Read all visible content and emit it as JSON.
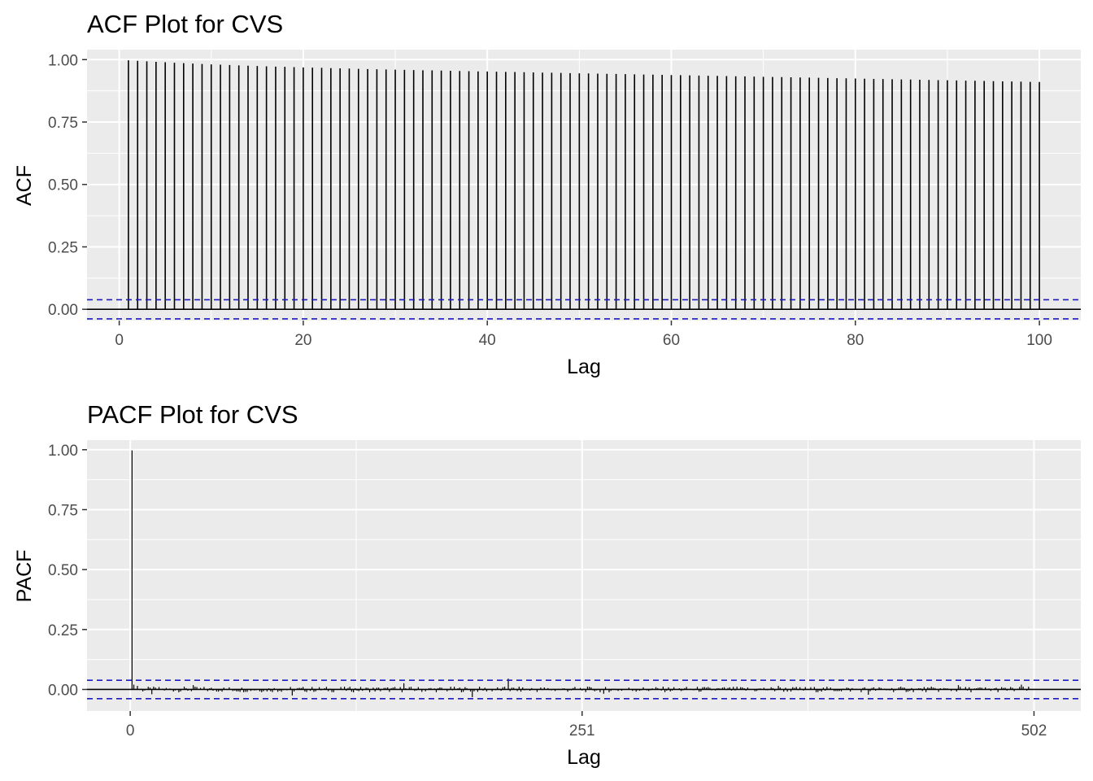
{
  "chart_data": [
    {
      "type": "bar",
      "title": "ACF Plot for CVS",
      "xlabel": "Lag",
      "ylabel": "ACF",
      "xlim": [
        -3.5,
        104.5
      ],
      "ylim": [
        -0.045,
        1.04
      ],
      "x_ticks": [
        0,
        20,
        40,
        60,
        80,
        100
      ],
      "y_ticks": [
        0.0,
        0.25,
        0.5,
        0.75,
        1.0
      ],
      "y_tick_labels": [
        "0.00",
        "0.25",
        "0.50",
        "0.75",
        "1.00"
      ],
      "confidence_bound": 0.0383,
      "lag_start": 1,
      "values": [
        0.9974,
        0.9951,
        0.9931,
        0.9912,
        0.9893,
        0.9875,
        0.9858,
        0.9842,
        0.9826,
        0.9811,
        0.9796,
        0.9783,
        0.977,
        0.9757,
        0.9745,
        0.9733,
        0.9721,
        0.971,
        0.9699,
        0.9689,
        0.9679,
        0.9669,
        0.9659,
        0.965,
        0.9641,
        0.9632,
        0.9624,
        0.9615,
        0.9607,
        0.9599,
        0.9591,
        0.9583,
        0.9575,
        0.9568,
        0.956,
        0.9553,
        0.9545,
        0.9538,
        0.953,
        0.9523,
        0.9516,
        0.9509,
        0.9502,
        0.9495,
        0.9488,
        0.9481,
        0.9474,
        0.9467,
        0.946,
        0.9453,
        0.9446,
        0.9439,
        0.9432,
        0.9425,
        0.9418,
        0.9411,
        0.9404,
        0.9397,
        0.939,
        0.9383,
        0.9376,
        0.9369,
        0.9362,
        0.9355,
        0.9348,
        0.9341,
        0.9334,
        0.9327,
        0.932,
        0.9313,
        0.9306,
        0.9299,
        0.9292,
        0.9285,
        0.9278,
        0.9271,
        0.9264,
        0.9257,
        0.925,
        0.9243,
        0.9236,
        0.9229,
        0.9222,
        0.9215,
        0.9208,
        0.9201,
        0.9194,
        0.9187,
        0.918,
        0.9173,
        0.9166,
        0.9159,
        0.9152,
        0.9145,
        0.9138,
        0.9131,
        0.9124,
        0.9117,
        0.911,
        0.9103
      ]
    },
    {
      "type": "bar",
      "title": "PACF Plot for CVS",
      "xlabel": "Lag",
      "ylabel": "PACF",
      "xlim": [
        -24,
        528
      ],
      "ylim": [
        -0.09,
        1.04
      ],
      "x_ticks": [
        0,
        251,
        502
      ],
      "y_ticks": [
        0.0,
        0.25,
        0.5,
        0.75,
        1.0
      ],
      "y_tick_labels": [
        "0.00",
        "0.25",
        "0.50",
        "0.75",
        "1.00"
      ],
      "confidence_bound": 0.0383,
      "lag_start": 1,
      "n_lags": 502,
      "first_value": 0.997,
      "residual_amplitude": 0.012,
      "notable_lags": {
        "2": 0.02,
        "4": 0.015,
        "12": -0.02,
        "35": 0.018,
        "90": -0.025,
        "152": 0.026,
        "190": -0.032,
        "210": 0.045,
        "263": -0.018,
        "360": 0.015,
        "410": -0.022,
        "460": 0.018,
        "495": 0.02
      }
    }
  ]
}
